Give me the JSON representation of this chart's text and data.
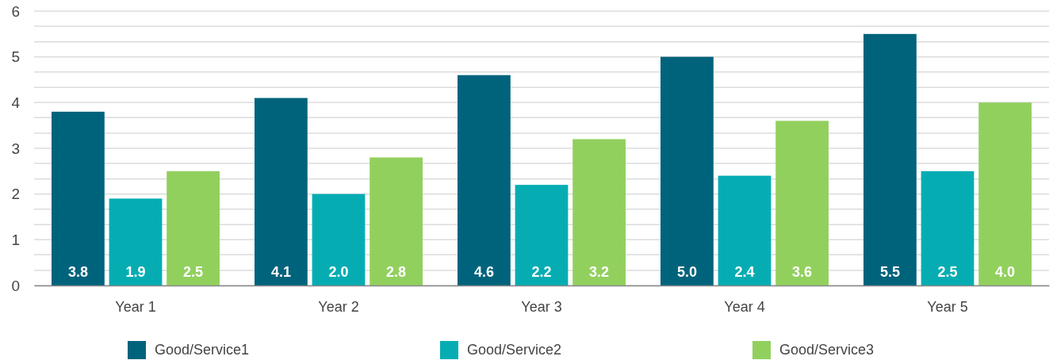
{
  "chart_data": {
    "type": "bar",
    "categories": [
      "Year 1",
      "Year 2",
      "Year 3",
      "Year 4",
      "Year 5"
    ],
    "series": [
      {
        "name": "Good/Service1",
        "color": "#00637c",
        "values": [
          3.8,
          4.1,
          4.6,
          5.0,
          5.5
        ],
        "value_labels": [
          "3.8",
          "4.1",
          "4.6",
          "5.0",
          "5.5"
        ]
      },
      {
        "name": "Good/Service2",
        "color": "#05adb3",
        "values": [
          1.9,
          2.0,
          2.2,
          2.4,
          2.5
        ],
        "value_labels": [
          "1.9",
          "2.0",
          "2.2",
          "2.4",
          "2.5"
        ]
      },
      {
        "name": "Good/Service3",
        "color": "#92d05e",
        "values": [
          2.5,
          2.8,
          3.2,
          3.6,
          4.0
        ],
        "value_labels": [
          "2.5",
          "2.8",
          "3.2",
          "3.6",
          "4.0"
        ]
      }
    ],
    "ylim": [
      0,
      6
    ],
    "yticks": [
      0,
      {
        "value": 0.33,
        "label": null
      },
      {
        "value": 0.67,
        "label": null
      },
      1,
      {
        "value": 1.33,
        "label": null
      },
      {
        "value": 1.67,
        "label": null
      },
      2,
      {
        "value": 2.33,
        "label": null
      },
      {
        "value": 2.67,
        "label": null
      },
      3,
      {
        "value": 3.33,
        "label": null
      },
      {
        "value": 3.67,
        "label": null
      },
      4,
      {
        "value": 4.33,
        "label": null
      },
      {
        "value": 4.67,
        "label": null
      },
      5,
      {
        "value": 5.33,
        "label": null
      },
      {
        "value": 5.67,
        "label": null
      },
      6
    ],
    "grid": "y",
    "legend": "bottom"
  }
}
